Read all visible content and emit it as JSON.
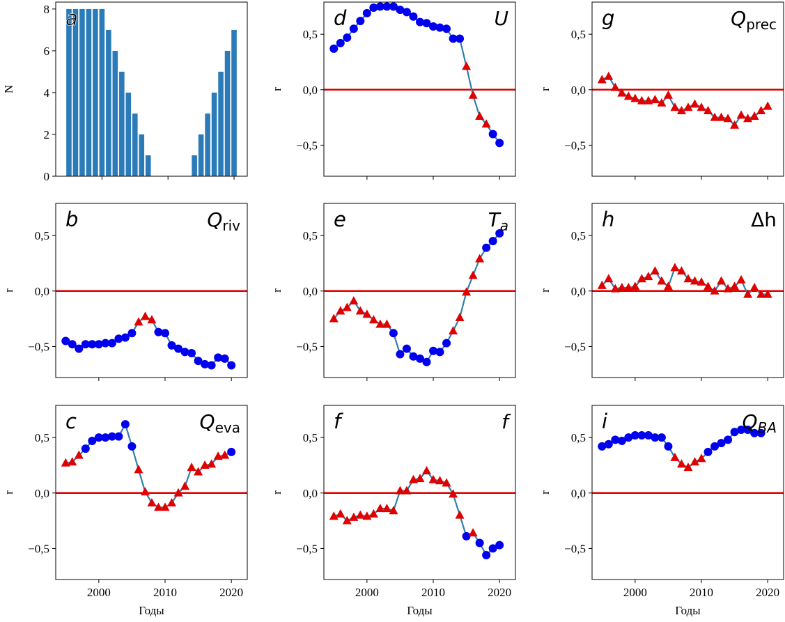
{
  "chart_data": [
    {
      "type": "bar",
      "panel": "a",
      "ylabel": "N",
      "x": [
        1995,
        1996,
        1997,
        1998,
        1999,
        2000,
        2001,
        2002,
        2003,
        2004,
        2005,
        2006,
        2007,
        2008,
        2009,
        2010,
        2011,
        2012,
        2013,
        2014,
        2015,
        2016,
        2017,
        2018,
        2019,
        2020
      ],
      "values": [
        8,
        8,
        8,
        8,
        8,
        8,
        7,
        6,
        5,
        4,
        3,
        2,
        1,
        0,
        0,
        0,
        0,
        0,
        0,
        1,
        2,
        3,
        4,
        5,
        6,
        7
      ],
      "color": "#2b7bb9",
      "xlim": [
        1993,
        2022
      ],
      "xticks": [
        2000,
        2010,
        2020
      ],
      "xtick_labels": false,
      "ylim": [
        0,
        8.33
      ],
      "yticks": [
        0,
        2,
        4,
        6,
        8
      ]
    },
    {
      "type": "line",
      "panel": "b",
      "variable": "Q",
      "variable_sub": "riv",
      "ylabel": "r",
      "x": [
        1995,
        1996,
        1997,
        1998,
        1999,
        2000,
        2001,
        2002,
        2003,
        2004,
        2005,
        2006,
        2007,
        2008,
        2009,
        2010,
        2011,
        2012,
        2013,
        2014,
        2015,
        2016,
        2017,
        2018,
        2019,
        2020
      ],
      "series": [
        {
          "color": "#2f7fa8",
          "values": [
            -0.45,
            -0.48,
            -0.52,
            -0.48,
            -0.48,
            -0.48,
            -0.47,
            -0.47,
            -0.43,
            -0.42,
            -0.38,
            -0.28,
            -0.23,
            -0.26,
            -0.37,
            -0.38,
            -0.49,
            -0.52,
            -0.55,
            -0.56,
            -0.63,
            -0.66,
            -0.67,
            -0.6,
            -0.61,
            -0.67
          ],
          "markers": [
            "o",
            "o",
            "o",
            "o",
            "o",
            "o",
            "o",
            "o",
            "o",
            "o",
            "o",
            "^",
            "^",
            "^",
            "o",
            "o",
            "o",
            "o",
            "o",
            "o",
            "o",
            "o",
            "o",
            "o",
            "o",
            "o"
          ]
        }
      ],
      "marker_colors": {
        "o": "#0000ee",
        "^": "#e00000"
      },
      "hline": 0,
      "hline_color": "#e00000",
      "xlim": [
        1993.5,
        2022.4
      ],
      "xticks": [
        2000,
        2010,
        2020
      ],
      "xtick_labels": false,
      "ylim": [
        -0.78,
        0.79
      ],
      "yticks": [
        {
          "value": -0.5,
          "label": "−0,5"
        },
        {
          "value": 0,
          "label": "0,0"
        },
        {
          "value": 0.5,
          "label": "0,5"
        }
      ]
    },
    {
      "type": "line",
      "panel": "c",
      "variable": "Q",
      "variable_sub": "eva",
      "ylabel": "r",
      "xlabel": "Годы",
      "x": [
        1995,
        1996,
        1997,
        1998,
        1999,
        2000,
        2001,
        2002,
        2003,
        2004,
        2005,
        2006,
        2007,
        2008,
        2009,
        2010,
        2011,
        2012,
        2013,
        2014,
        2015,
        2016,
        2017,
        2018,
        2019,
        2020
      ],
      "series": [
        {
          "color": "#2f7fa8",
          "values": [
            0.27,
            0.28,
            0.34,
            0.4,
            0.47,
            0.5,
            0.5,
            0.51,
            0.51,
            0.62,
            0.42,
            0.21,
            0.01,
            -0.09,
            -0.13,
            -0.13,
            -0.09,
            0,
            0.06,
            0.23,
            0.19,
            0.25,
            0.26,
            0.33,
            0.34,
            0.37
          ],
          "markers": [
            "^",
            "^",
            "^",
            "o",
            "o",
            "o",
            "o",
            "o",
            "o",
            "o",
            "o",
            "^",
            "^",
            "^",
            "^",
            "^",
            "^",
            "^",
            "^",
            "^",
            "^",
            "^",
            "^",
            "^",
            "^",
            "o"
          ]
        }
      ],
      "marker_colors": {
        "o": "#0000ee",
        "^": "#e00000"
      },
      "hline": 0,
      "hline_color": "#e00000",
      "xlim": [
        1993.5,
        2022.4
      ],
      "xticks": [
        2000,
        2010,
        2020
      ],
      "xtick_labels": true,
      "ylim": [
        -0.78,
        0.79
      ],
      "yticks": [
        {
          "value": -0.5,
          "label": "−0,5"
        },
        {
          "value": 0,
          "label": "0,0"
        },
        {
          "value": 0.5,
          "label": "0,5"
        }
      ]
    },
    {
      "type": "line",
      "panel": "d",
      "variable": "U",
      "ylabel": "r",
      "x": [
        1995,
        1996,
        1997,
        1998,
        1999,
        2000,
        2001,
        2002,
        2003,
        2004,
        2005,
        2006,
        2007,
        2008,
        2009,
        2010,
        2011,
        2012,
        2013,
        2014,
        2015,
        2016,
        2017,
        2018,
        2019,
        2020
      ],
      "series": [
        {
          "color": "#2f7fa8",
          "values": [
            0.37,
            0.42,
            0.47,
            0.55,
            0.62,
            0.69,
            0.74,
            0.75,
            0.75,
            0.75,
            0.72,
            0.7,
            0.66,
            0.61,
            0.6,
            0.57,
            0.56,
            0.55,
            0.46,
            0.46,
            0.21,
            -0.05,
            -0.24,
            -0.31,
            -0.4,
            -0.48
          ],
          "markers": [
            "o",
            "o",
            "o",
            "o",
            "o",
            "o",
            "o",
            "o",
            "o",
            "o",
            "o",
            "o",
            "o",
            "o",
            "o",
            "o",
            "o",
            "o",
            "o",
            "o",
            "^",
            "^",
            "^",
            "^",
            "o",
            "o"
          ]
        }
      ],
      "marker_colors": {
        "o": "#0000ee",
        "^": "#e00000"
      },
      "hline": 0,
      "hline_color": "#e00000",
      "xlim": [
        1993.5,
        2022.4
      ],
      "xticks": [
        2000,
        2010,
        2020
      ],
      "xtick_labels": false,
      "ylim": [
        -0.78,
        0.79
      ],
      "yticks": [
        {
          "value": -0.5,
          "label": "−0,5"
        },
        {
          "value": 0,
          "label": "0,0"
        },
        {
          "value": 0.5,
          "label": "0,5"
        }
      ]
    },
    {
      "type": "line",
      "panel": "e",
      "variable": "T",
      "variable_sub": "a",
      "ylabel": "r",
      "x": [
        1995,
        1996,
        1997,
        1998,
        1999,
        2000,
        2001,
        2002,
        2003,
        2004,
        2005,
        2006,
        2007,
        2008,
        2009,
        2010,
        2011,
        2012,
        2013,
        2014,
        2015,
        2016,
        2017,
        2018,
        2019,
        2020
      ],
      "series": [
        {
          "color": "#2f7fa8",
          "values": [
            -0.25,
            -0.18,
            -0.15,
            -0.09,
            -0.18,
            -0.21,
            -0.26,
            -0.3,
            -0.3,
            -0.38,
            -0.57,
            -0.52,
            -0.59,
            -0.61,
            -0.64,
            -0.54,
            -0.55,
            -0.47,
            -0.36,
            -0.24,
            -0.01,
            0.14,
            0.29,
            0.39,
            0.45,
            0.52
          ],
          "markers": [
            "^",
            "^",
            "^",
            "^",
            "^",
            "^",
            "^",
            "^",
            "^",
            "o",
            "o",
            "o",
            "o",
            "o",
            "o",
            "o",
            "o",
            "o",
            "^",
            "^",
            "^",
            "^",
            "^",
            "o",
            "o",
            "o"
          ]
        }
      ],
      "marker_colors": {
        "o": "#0000ee",
        "^": "#e00000"
      },
      "hline": 0,
      "hline_color": "#e00000",
      "xlim": [
        1993.5,
        2022.4
      ],
      "xticks": [
        2000,
        2010,
        2020
      ],
      "xtick_labels": false,
      "ylim": [
        -0.78,
        0.79
      ],
      "yticks": [
        {
          "value": -0.5,
          "label": "−0,5"
        },
        {
          "value": 0,
          "label": "0,0"
        },
        {
          "value": 0.5,
          "label": "0,5"
        }
      ]
    },
    {
      "type": "line",
      "panel": "f",
      "variable": "f",
      "ylabel": "r",
      "xlabel": "Годы",
      "x": [
        1995,
        1996,
        1997,
        1998,
        1999,
        2000,
        2001,
        2002,
        2003,
        2004,
        2005,
        2006,
        2007,
        2008,
        2009,
        2010,
        2011,
        2012,
        2013,
        2014,
        2015,
        2016,
        2017,
        2018,
        2019,
        2020
      ],
      "series": [
        {
          "color": "#2f7fa8",
          "values": [
            -0.21,
            -0.19,
            -0.25,
            -0.22,
            -0.2,
            -0.21,
            -0.19,
            -0.14,
            -0.14,
            -0.16,
            0.02,
            0.02,
            0.12,
            0.13,
            0.2,
            0.12,
            0.11,
            0.09,
            -0.01,
            -0.2,
            -0.39,
            -0.36,
            -0.45,
            -0.56,
            -0.5,
            -0.47
          ],
          "markers": [
            "^",
            "^",
            "^",
            "^",
            "^",
            "^",
            "^",
            "^",
            "^",
            "^",
            "^",
            "^",
            "^",
            "^",
            "^",
            "^",
            "^",
            "^",
            "^",
            "^",
            "o",
            "^",
            "o",
            "o",
            "o",
            "o"
          ]
        }
      ],
      "marker_colors": {
        "o": "#0000ee",
        "^": "#e00000"
      },
      "hline": 0,
      "hline_color": "#e00000",
      "xlim": [
        1993.5,
        2022.4
      ],
      "xticks": [
        2000,
        2010,
        2020
      ],
      "xtick_labels": true,
      "ylim": [
        -0.78,
        0.79
      ],
      "yticks": [
        {
          "value": -0.5,
          "label": "−0,5"
        },
        {
          "value": 0,
          "label": "0,0"
        },
        {
          "value": 0.5,
          "label": "0,5"
        }
      ]
    },
    {
      "type": "line",
      "panel": "g",
      "variable": "Q",
      "variable_sub": "prec",
      "ylabel": "r",
      "x": [
        1995,
        1996,
        1997,
        1998,
        1999,
        2000,
        2001,
        2002,
        2003,
        2004,
        2005,
        2006,
        2007,
        2008,
        2009,
        2010,
        2011,
        2012,
        2013,
        2014,
        2015,
        2016,
        2017,
        2018,
        2019,
        2020
      ],
      "series": [
        {
          "color": "#2f7fa8",
          "values": [
            0.09,
            0.12,
            0.02,
            -0.03,
            -0.06,
            -0.08,
            -0.1,
            -0.1,
            -0.09,
            -0.12,
            -0.05,
            -0.16,
            -0.19,
            -0.16,
            -0.13,
            -0.16,
            -0.19,
            -0.25,
            -0.25,
            -0.26,
            -0.32,
            -0.23,
            -0.26,
            -0.24,
            -0.19,
            -0.15
          ],
          "markers": [
            "^",
            "^",
            "^",
            "^",
            "^",
            "^",
            "^",
            "^",
            "^",
            "^",
            "^",
            "^",
            "^",
            "^",
            "^",
            "^",
            "^",
            "^",
            "^",
            "^",
            "^",
            "^",
            "^",
            "^",
            "^",
            "^"
          ]
        }
      ],
      "marker_colors": {
        "o": "#0000ee",
        "^": "#e00000"
      },
      "hline": 0,
      "hline_color": "#e00000",
      "xlim": [
        1993.5,
        2022.4
      ],
      "xticks": [
        2000,
        2010,
        2020
      ],
      "xtick_labels": false,
      "ylim": [
        -0.78,
        0.79
      ],
      "yticks": [
        {
          "value": -0.5,
          "label": "−0,5"
        },
        {
          "value": 0,
          "label": "0,0"
        },
        {
          "value": 0.5,
          "label": "0,5"
        }
      ]
    },
    {
      "type": "line",
      "panel": "h",
      "variable": "Δh",
      "ylabel": "r",
      "x": [
        1995,
        1996,
        1997,
        1998,
        1999,
        2000,
        2001,
        2002,
        2003,
        2004,
        2005,
        2006,
        2007,
        2008,
        2009,
        2010,
        2011,
        2012,
        2013,
        2014,
        2015,
        2016,
        2017,
        2018,
        2019,
        2020
      ],
      "series": [
        {
          "color": "#2f7fa8",
          "values": [
            0.05,
            0.11,
            0.02,
            0.03,
            0.03,
            0.04,
            0.11,
            0.13,
            0.18,
            0.09,
            0.04,
            0.21,
            0.18,
            0.11,
            0.09,
            0.08,
            0.04,
            0,
            0.09,
            0.02,
            0.04,
            0.1,
            -0.03,
            0.03,
            -0.03,
            -0.03
          ],
          "markers": [
            "^",
            "^",
            "^",
            "^",
            "^",
            "^",
            "^",
            "^",
            "^",
            "^",
            "^",
            "^",
            "^",
            "^",
            "^",
            "^",
            "^",
            "^",
            "^",
            "^",
            "^",
            "^",
            "^",
            "^",
            "^",
            "^"
          ]
        }
      ],
      "marker_colors": {
        "o": "#0000ee",
        "^": "#e00000"
      },
      "hline": 0,
      "hline_color": "#e00000",
      "xlim": [
        1993.5,
        2022.4
      ],
      "xticks": [
        2000,
        2010,
        2020
      ],
      "xtick_labels": false,
      "ylim": [
        -0.78,
        0.79
      ],
      "yticks": [
        {
          "value": -0.5,
          "label": "−0,5"
        },
        {
          "value": 0,
          "label": "0,0"
        },
        {
          "value": 0.5,
          "label": "0,5"
        }
      ]
    },
    {
      "type": "line",
      "panel": "i",
      "variable": "Q",
      "variable_sub": "BA",
      "ylabel": "r",
      "xlabel": "Годы",
      "x": [
        1995,
        1996,
        1997,
        1998,
        1999,
        2000,
        2001,
        2002,
        2003,
        2004,
        2005,
        2006,
        2007,
        2008,
        2009,
        2010,
        2011,
        2012,
        2013,
        2014,
        2015,
        2016,
        2017,
        2018,
        2019
      ],
      "series": [
        {
          "color": "#2f7fa8",
          "values": [
            0.42,
            0.44,
            0.48,
            0.47,
            0.5,
            0.52,
            0.52,
            0.52,
            0.5,
            0.5,
            0.42,
            0.32,
            0.26,
            0.23,
            0.28,
            0.31,
            0.37,
            0.42,
            0.45,
            0.48,
            0.55,
            0.57,
            0.57,
            0.54,
            0.54
          ],
          "markers": [
            "o",
            "o",
            "o",
            "o",
            "o",
            "o",
            "o",
            "o",
            "o",
            "o",
            "o",
            "^",
            "^",
            "^",
            "^",
            "^",
            "o",
            "o",
            "o",
            "o",
            "o",
            "o",
            "o",
            "o",
            "o"
          ]
        }
      ],
      "marker_colors": {
        "o": "#0000ee",
        "^": "#e00000"
      },
      "hline": 0,
      "hline_color": "#e00000",
      "xlim": [
        1993.5,
        2022.4
      ],
      "xticks": [
        2000,
        2010,
        2020
      ],
      "xtick_labels": true,
      "ylim": [
        -0.78,
        0.79
      ],
      "yticks": [
        {
          "value": -0.5,
          "label": "−0,5"
        },
        {
          "value": 0,
          "label": "0,0"
        },
        {
          "value": 0.5,
          "label": "0,5"
        }
      ]
    }
  ]
}
